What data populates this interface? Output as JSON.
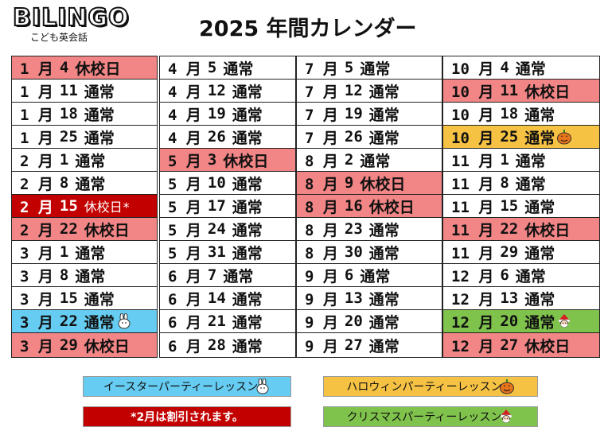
{
  "logo": {
    "name": "BILINGO",
    "subtitle": "こども英会話"
  },
  "title": "2025 年間カレンダー",
  "columns": [
    [
      {
        "month": "1 月",
        "day": "4",
        "status": "休校日",
        "type": "holiday"
      },
      {
        "month": "1 月",
        "day": "11",
        "status": "通常",
        "type": "normal"
      },
      {
        "month": "1 月",
        "day": "18",
        "status": "通常",
        "type": "normal"
      },
      {
        "month": "1 月",
        "day": "25",
        "status": "通常",
        "type": "normal"
      },
      {
        "month": "2 月",
        "day": "1",
        "status": "通常",
        "type": "normal"
      },
      {
        "month": "2 月",
        "day": "8",
        "status": "通常",
        "type": "normal"
      },
      {
        "month": "2 月",
        "day": "15",
        "status": "休校日*",
        "type": "discount"
      },
      {
        "month": "2 月",
        "day": "22",
        "status": "休校日",
        "type": "holiday"
      },
      {
        "month": "3 月",
        "day": "1",
        "status": "通常",
        "type": "normal"
      },
      {
        "month": "3 月",
        "day": "8",
        "status": "通常",
        "type": "normal"
      },
      {
        "month": "3 月",
        "day": "15",
        "status": "通常",
        "type": "normal"
      },
      {
        "month": "3 月",
        "day": "22",
        "status": "通常",
        "type": "easter"
      },
      {
        "month": "3 月",
        "day": "29",
        "status": "休校日",
        "type": "holiday"
      }
    ],
    [
      {
        "month": "4 月",
        "day": "5",
        "status": "通常",
        "type": "normal"
      },
      {
        "month": "4 月",
        "day": "12",
        "status": "通常",
        "type": "normal"
      },
      {
        "month": "4 月",
        "day": "19",
        "status": "通常",
        "type": "normal"
      },
      {
        "month": "4 月",
        "day": "26",
        "status": "通常",
        "type": "normal"
      },
      {
        "month": "5 月",
        "day": "3",
        "status": "休校日",
        "type": "holiday"
      },
      {
        "month": "5 月",
        "day": "10",
        "status": "通常",
        "type": "normal"
      },
      {
        "month": "5 月",
        "day": "17",
        "status": "通常",
        "type": "normal"
      },
      {
        "month": "5 月",
        "day": "24",
        "status": "通常",
        "type": "normal"
      },
      {
        "month": "5 月",
        "day": "31",
        "status": "通常",
        "type": "normal"
      },
      {
        "month": "6 月",
        "day": "7",
        "status": "通常",
        "type": "normal"
      },
      {
        "month": "6 月",
        "day": "14",
        "status": "通常",
        "type": "normal"
      },
      {
        "month": "6 月",
        "day": "21",
        "status": "通常",
        "type": "normal"
      },
      {
        "month": "6 月",
        "day": "28",
        "status": "通常",
        "type": "normal"
      }
    ],
    [
      {
        "month": "7 月",
        "day": "5",
        "status": "通常",
        "type": "normal"
      },
      {
        "month": "7 月",
        "day": "12",
        "status": "通常",
        "type": "normal"
      },
      {
        "month": "7 月",
        "day": "19",
        "status": "通常",
        "type": "normal"
      },
      {
        "month": "7 月",
        "day": "26",
        "status": "通常",
        "type": "normal"
      },
      {
        "month": "8 月",
        "day": "2",
        "status": "通常",
        "type": "normal"
      },
      {
        "month": "8 月",
        "day": "9",
        "status": "休校日",
        "type": "holiday"
      },
      {
        "month": "8 月",
        "day": "16",
        "status": "休校日",
        "type": "holiday"
      },
      {
        "month": "8 月",
        "day": "23",
        "status": "通常",
        "type": "normal"
      },
      {
        "month": "8 月",
        "day": "30",
        "status": "通常",
        "type": "normal"
      },
      {
        "month": "9 月",
        "day": "6",
        "status": "通常",
        "type": "normal"
      },
      {
        "month": "9 月",
        "day": "13",
        "status": "通常",
        "type": "normal"
      },
      {
        "month": "9 月",
        "day": "20",
        "status": "通常",
        "type": "normal"
      },
      {
        "month": "9 月",
        "day": "27",
        "status": "通常",
        "type": "normal"
      }
    ],
    [
      {
        "month": "10 月",
        "day": "4",
        "status": "通常",
        "type": "normal"
      },
      {
        "month": "10 月",
        "day": "11",
        "status": "休校日",
        "type": "holiday"
      },
      {
        "month": "10 月",
        "day": "18",
        "status": "通常",
        "type": "normal"
      },
      {
        "month": "10 月",
        "day": "25",
        "status": "通常",
        "type": "halloween"
      },
      {
        "month": "11 月",
        "day": "1",
        "status": "通常",
        "type": "normal"
      },
      {
        "month": "11 月",
        "day": "8",
        "status": "通常",
        "type": "normal"
      },
      {
        "month": "11 月",
        "day": "15",
        "status": "通常",
        "type": "normal"
      },
      {
        "month": "11 月",
        "day": "22",
        "status": "休校日",
        "type": "holiday"
      },
      {
        "month": "11 月",
        "day": "29",
        "status": "通常",
        "type": "normal"
      },
      {
        "month": "12 月",
        "day": "6",
        "status": "通常",
        "type": "normal"
      },
      {
        "month": "12 月",
        "day": "13",
        "status": "通常",
        "type": "normal"
      },
      {
        "month": "12 月",
        "day": "20",
        "status": "通常",
        "type": "christmas"
      },
      {
        "month": "12 月",
        "day": "27",
        "status": "休校日",
        "type": "holiday"
      }
    ]
  ],
  "legend": {
    "easter": "イースターパーティーレッスン",
    "halloween": "ハロウィンパーティーレッスン",
    "discount": "*2月は割引されます。",
    "christmas": "クリスマスパーティーレッスン"
  },
  "colors": {
    "holiday": "#f28585",
    "easter": "#66ccf2",
    "halloween": "#f5c244",
    "christmas": "#7fc24c",
    "discount": "#c20000"
  },
  "icons": {
    "easter": "rabbit-icon",
    "halloween": "pumpkin-icon",
    "christmas": "santa-icon"
  }
}
